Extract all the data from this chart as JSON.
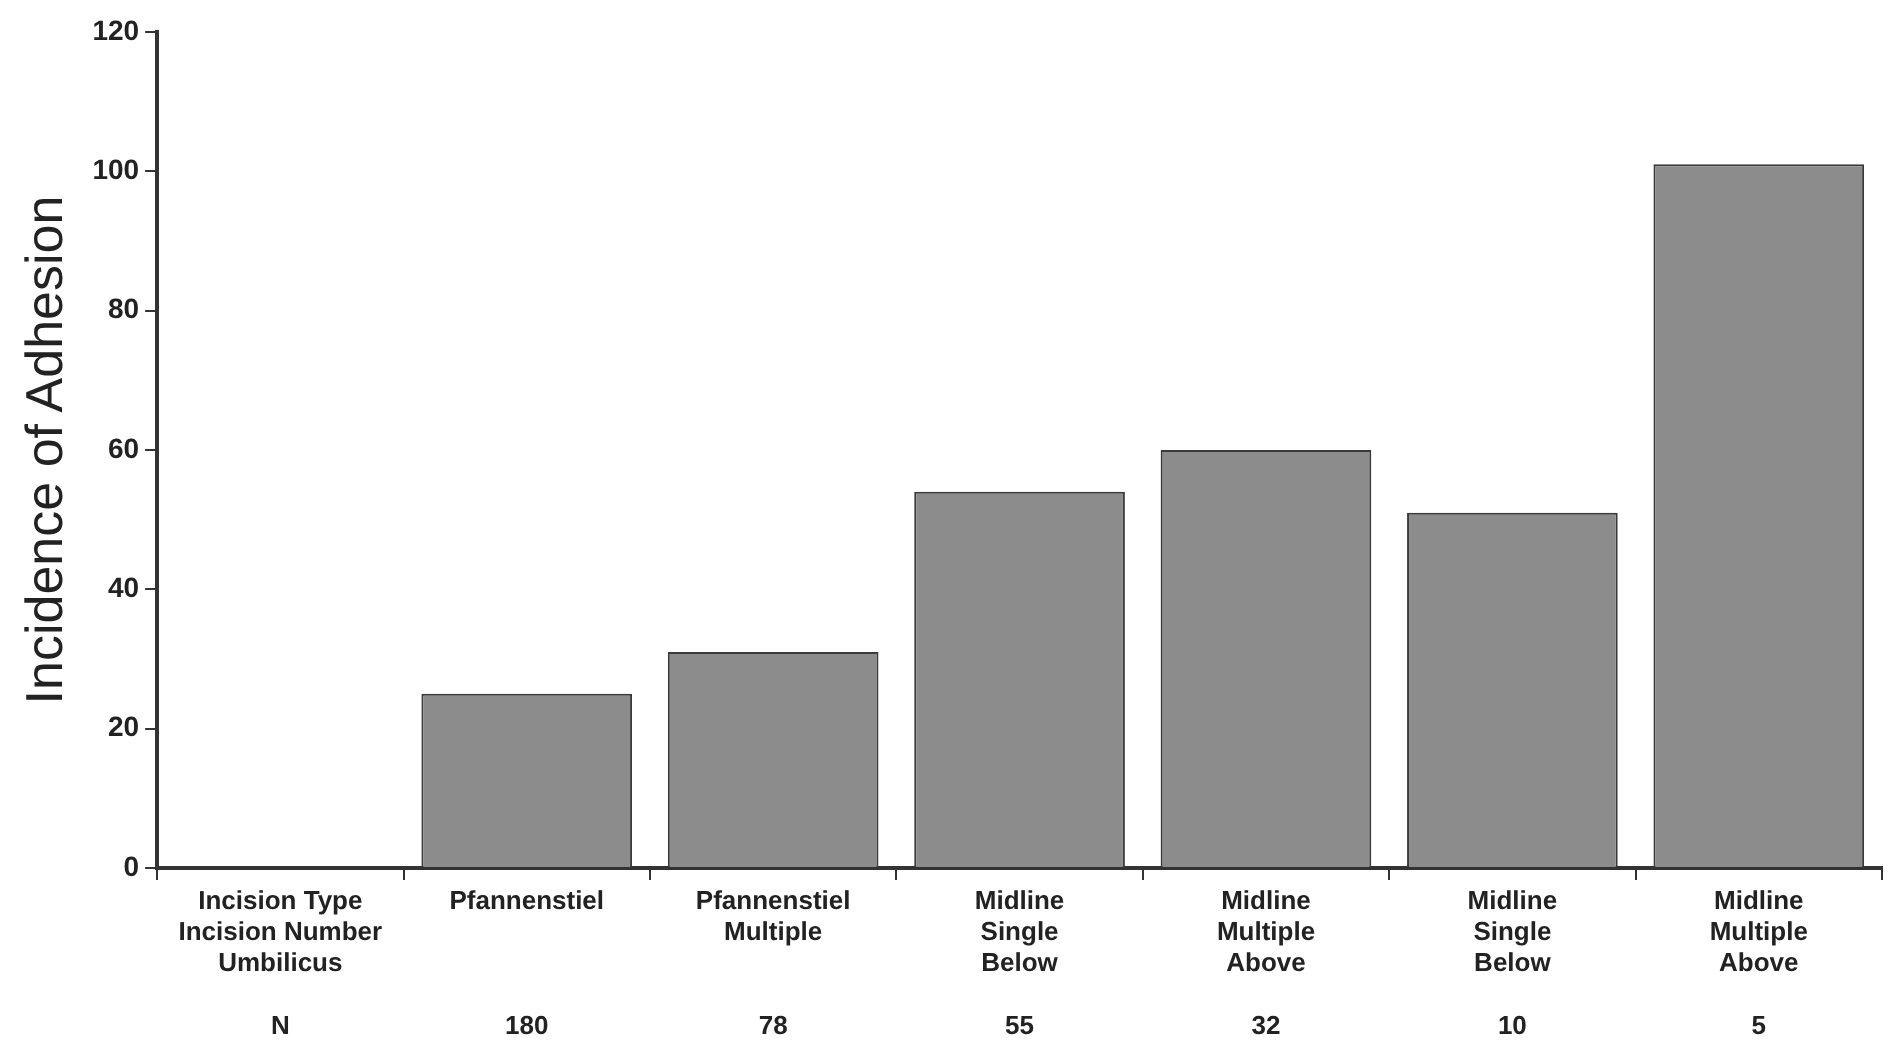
{
  "chart_data": {
    "type": "bar",
    "ylabel": "Incidence of Adhesion",
    "categories": [
      "Incision Type\nIncision Number\nUmbilicus\n\nN",
      "Pfannenstiel\n\n\n\n180",
      "Pfannenstiel\nMultiple\n\n\n78",
      "Midline\nSingle\nBelow\n\n55",
      "Midline\nMultiple\nAbove\n\n32",
      "Midline\nSingle\nBelow\n\n10",
      "Midline\nMultiple\nAbove\n\n5"
    ],
    "values": [
      null,
      25,
      31,
      54,
      60,
      51,
      101
    ],
    "color": "#8c8c8c",
    "ylim": [
      0,
      120
    ],
    "yticks": [
      0,
      20,
      40,
      60,
      80,
      100,
      120
    ],
    "grid": false,
    "legend": false
  }
}
